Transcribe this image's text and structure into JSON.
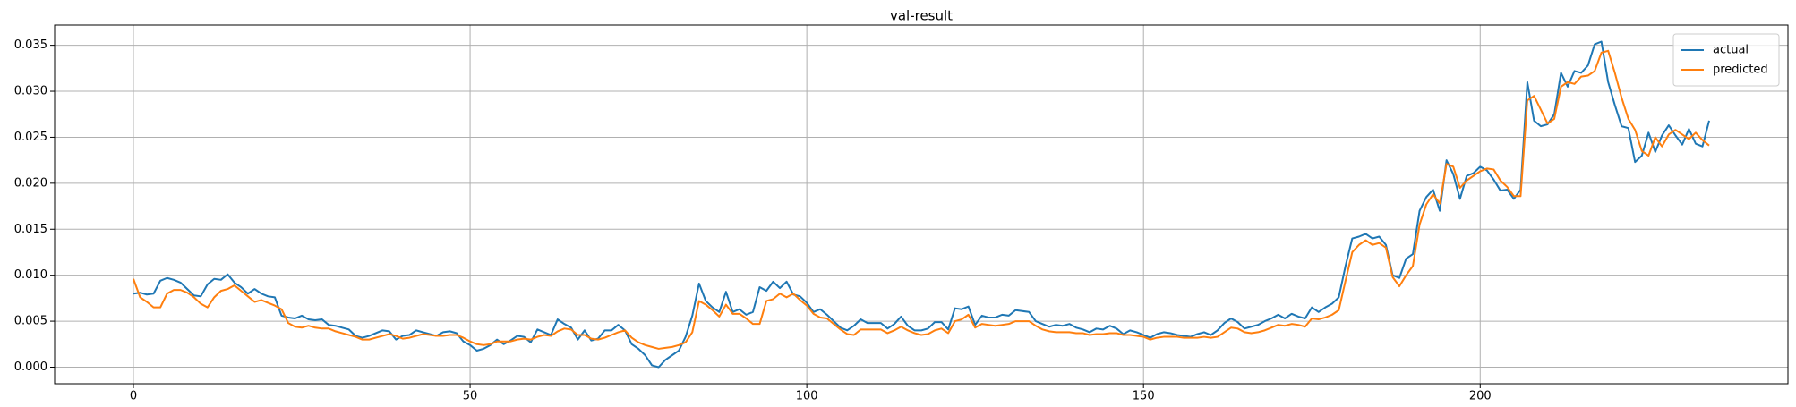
{
  "chart_data": {
    "type": "line",
    "title": "val-result",
    "x": [
      0,
      1,
      2,
      3,
      4,
      5,
      6,
      7,
      8,
      9,
      10,
      11,
      12,
      13,
      14,
      15,
      16,
      17,
      18,
      19,
      20,
      21,
      22,
      23,
      24,
      25,
      26,
      27,
      28,
      29,
      30,
      31,
      32,
      33,
      34,
      35,
      36,
      37,
      38,
      39,
      40,
      41,
      42,
      43,
      44,
      45,
      46,
      47,
      48,
      49,
      50,
      51,
      52,
      53,
      54,
      55,
      56,
      57,
      58,
      59,
      60,
      61,
      62,
      63,
      64,
      65,
      66,
      67,
      68,
      69,
      70,
      71,
      72,
      73,
      74,
      75,
      76,
      77,
      78,
      79,
      80,
      81,
      82,
      83,
      84,
      85,
      86,
      87,
      88,
      89,
      90,
      91,
      92,
      93,
      94,
      95,
      96,
      97,
      98,
      99,
      100,
      101,
      102,
      103,
      104,
      105,
      106,
      107,
      108,
      109,
      110,
      111,
      112,
      113,
      114,
      115,
      116,
      117,
      118,
      119,
      120,
      121,
      122,
      123,
      124,
      125,
      126,
      127,
      128,
      129,
      130,
      131,
      132,
      133,
      134,
      135,
      136,
      137,
      138,
      139,
      140,
      141,
      142,
      143,
      144,
      145,
      146,
      147,
      148,
      149,
      150,
      151,
      152,
      153,
      154,
      155,
      156,
      157,
      158,
      159,
      160,
      161,
      162,
      163,
      164,
      165,
      166,
      167,
      168,
      169,
      170,
      171,
      172,
      173,
      174,
      175,
      176,
      177,
      178,
      179,
      180,
      181,
      182,
      183,
      184,
      185,
      186,
      187,
      188,
      189,
      190,
      191,
      192,
      193,
      194,
      195,
      196,
      197,
      198,
      199,
      200,
      201,
      202,
      203,
      204,
      205,
      206,
      207,
      208,
      209,
      210,
      211,
      212,
      213,
      214,
      215,
      216,
      217,
      218,
      219,
      220,
      221,
      222,
      223,
      224,
      225,
      226,
      227,
      228,
      229,
      230,
      231,
      232,
      233,
      234
    ],
    "series": [
      {
        "name": "actual",
        "color": "#1f77b4",
        "values": [
          0.008,
          0.0081,
          0.0079,
          0.008,
          0.0094,
          0.0097,
          0.0095,
          0.0092,
          0.0085,
          0.0078,
          0.0077,
          0.009,
          0.0096,
          0.0095,
          0.0101,
          0.0092,
          0.0087,
          0.008,
          0.0085,
          0.008,
          0.0077,
          0.0076,
          0.0056,
          0.0054,
          0.0053,
          0.0056,
          0.0052,
          0.0051,
          0.0052,
          0.0046,
          0.0045,
          0.0043,
          0.0041,
          0.0034,
          0.0032,
          0.0034,
          0.0037,
          0.004,
          0.0039,
          0.003,
          0.0034,
          0.0035,
          0.004,
          0.0038,
          0.0036,
          0.0034,
          0.0038,
          0.0039,
          0.0037,
          0.0028,
          0.0024,
          0.0018,
          0.002,
          0.0024,
          0.003,
          0.0025,
          0.0029,
          0.0034,
          0.0033,
          0.0027,
          0.0041,
          0.0038,
          0.0035,
          0.0052,
          0.0047,
          0.0043,
          0.003,
          0.004,
          0.0029,
          0.0031,
          0.004,
          0.004,
          0.0046,
          0.004,
          0.0025,
          0.002,
          0.0013,
          0.0002,
          0.0,
          0.0008,
          0.0013,
          0.0018,
          0.0033,
          0.0056,
          0.0091,
          0.0072,
          0.0065,
          0.006,
          0.0082,
          0.006,
          0.0063,
          0.0057,
          0.006,
          0.0087,
          0.0083,
          0.0093,
          0.0086,
          0.0093,
          0.0079,
          0.0077,
          0.007,
          0.006,
          0.0063,
          0.0057,
          0.005,
          0.0043,
          0.004,
          0.0045,
          0.0052,
          0.0048,
          0.0048,
          0.0048,
          0.0042,
          0.0047,
          0.0055,
          0.0045,
          0.004,
          0.004,
          0.0042,
          0.0049,
          0.0049,
          0.0041,
          0.0064,
          0.0063,
          0.0066,
          0.0046,
          0.0056,
          0.0054,
          0.0054,
          0.0057,
          0.0056,
          0.0062,
          0.0061,
          0.006,
          0.005,
          0.0047,
          0.0044,
          0.0046,
          0.0045,
          0.0047,
          0.0043,
          0.0041,
          0.0038,
          0.0042,
          0.0041,
          0.0045,
          0.0042,
          0.0036,
          0.004,
          0.0038,
          0.0035,
          0.0032,
          0.0036,
          0.0038,
          0.0037,
          0.0035,
          0.0034,
          0.0033,
          0.0036,
          0.0038,
          0.0035,
          0.004,
          0.0048,
          0.0053,
          0.0049,
          0.0042,
          0.0044,
          0.0046,
          0.005,
          0.0053,
          0.0057,
          0.0053,
          0.0058,
          0.0055,
          0.0053,
          0.0065,
          0.006,
          0.0065,
          0.0069,
          0.0076,
          0.011,
          0.014,
          0.0142,
          0.0145,
          0.014,
          0.0142,
          0.0133,
          0.01,
          0.0097,
          0.0118,
          0.0123,
          0.017,
          0.0185,
          0.0193,
          0.017,
          0.0225,
          0.021,
          0.0183,
          0.0208,
          0.0211,
          0.0218,
          0.0214,
          0.0204,
          0.0192,
          0.0193,
          0.0183,
          0.0193,
          0.031,
          0.0268,
          0.0262,
          0.0264,
          0.0275,
          0.032,
          0.0305,
          0.0322,
          0.032,
          0.0328,
          0.0351,
          0.0354,
          0.031,
          0.0285,
          0.0262,
          0.026,
          0.0223,
          0.023,
          0.0255,
          0.0234,
          0.0252,
          0.0263,
          0.0252,
          0.0242,
          0.0259,
          0.0243,
          0.024,
          0.0268
        ]
      },
      {
        "name": "predicted",
        "color": "#ff7f0e",
        "values": [
          0.0096,
          0.0076,
          0.0071,
          0.0065,
          0.0065,
          0.008,
          0.0084,
          0.0084,
          0.0081,
          0.0076,
          0.0069,
          0.0065,
          0.0076,
          0.0083,
          0.0085,
          0.0089,
          0.0083,
          0.0077,
          0.0071,
          0.0073,
          0.007,
          0.0067,
          0.0063,
          0.0048,
          0.0044,
          0.0043,
          0.0045,
          0.0043,
          0.0042,
          0.0042,
          0.0039,
          0.0037,
          0.0035,
          0.0033,
          0.003,
          0.003,
          0.0032,
          0.0034,
          0.0036,
          0.0034,
          0.0031,
          0.0032,
          0.0034,
          0.0036,
          0.0035,
          0.0034,
          0.0034,
          0.0035,
          0.0035,
          0.0032,
          0.0028,
          0.0025,
          0.0024,
          0.0025,
          0.0028,
          0.0028,
          0.0028,
          0.003,
          0.0031,
          0.003,
          0.0033,
          0.0035,
          0.0034,
          0.0039,
          0.0042,
          0.0041,
          0.0035,
          0.0035,
          0.0031,
          0.003,
          0.0032,
          0.0035,
          0.0038,
          0.004,
          0.0032,
          0.0027,
          0.0024,
          0.0022,
          0.002,
          0.0021,
          0.0022,
          0.0024,
          0.0027,
          0.0038,
          0.0072,
          0.0068,
          0.0062,
          0.0055,
          0.0068,
          0.0058,
          0.0058,
          0.0053,
          0.0047,
          0.0047,
          0.0072,
          0.0074,
          0.008,
          0.0076,
          0.008,
          0.0073,
          0.0067,
          0.0058,
          0.0054,
          0.0053,
          0.0047,
          0.0041,
          0.0036,
          0.0035,
          0.0041,
          0.0041,
          0.0041,
          0.0041,
          0.0037,
          0.004,
          0.0044,
          0.004,
          0.0037,
          0.0035,
          0.0036,
          0.004,
          0.0042,
          0.0037,
          0.005,
          0.0052,
          0.0057,
          0.0043,
          0.0047,
          0.0046,
          0.0045,
          0.0046,
          0.0047,
          0.005,
          0.005,
          0.005,
          0.0045,
          0.0041,
          0.0039,
          0.0038,
          0.0038,
          0.0038,
          0.0037,
          0.0037,
          0.0035,
          0.0036,
          0.0036,
          0.0037,
          0.0037,
          0.0035,
          0.0035,
          0.0034,
          0.0033,
          0.003,
          0.0032,
          0.0033,
          0.0033,
          0.0033,
          0.0032,
          0.0032,
          0.0032,
          0.0033,
          0.0032,
          0.0033,
          0.0038,
          0.0043,
          0.0042,
          0.0038,
          0.0037,
          0.0038,
          0.004,
          0.0043,
          0.0046,
          0.0045,
          0.0047,
          0.0046,
          0.0044,
          0.0053,
          0.0052,
          0.0054,
          0.0057,
          0.0062,
          0.0094,
          0.0125,
          0.0133,
          0.0138,
          0.0133,
          0.0135,
          0.013,
          0.0098,
          0.0088,
          0.01,
          0.011,
          0.0155,
          0.0177,
          0.0188,
          0.0178,
          0.0221,
          0.0218,
          0.0195,
          0.0203,
          0.0208,
          0.0213,
          0.0216,
          0.0215,
          0.0203,
          0.0196,
          0.0186,
          0.0186,
          0.029,
          0.0295,
          0.028,
          0.0265,
          0.027,
          0.0305,
          0.031,
          0.0308,
          0.0316,
          0.0317,
          0.0322,
          0.0342,
          0.0344,
          0.032,
          0.0293,
          0.027,
          0.0258,
          0.0235,
          0.023,
          0.025,
          0.024,
          0.0253,
          0.0258,
          0.0253,
          0.0248,
          0.0255,
          0.0247,
          0.0241
        ]
      }
    ],
    "xlim": [
      -11.7,
      245.7
    ],
    "ylim": [
      -0.0018,
      0.0372
    ],
    "xticks": [
      0,
      50,
      100,
      150,
      200
    ],
    "yticks": [
      {
        "value": 0,
        "label": "0.000"
      },
      {
        "value": 0.005,
        "label": "0.005"
      },
      {
        "value": 0.01,
        "label": "0.010"
      },
      {
        "value": 0.015,
        "label": "0.015"
      },
      {
        "value": 0.02,
        "label": "0.020"
      },
      {
        "value": 0.025,
        "label": "0.025"
      },
      {
        "value": 0.03,
        "label": "0.030"
      },
      {
        "value": 0.035,
        "label": "0.035"
      }
    ],
    "grid": true,
    "legend": "upper right"
  }
}
